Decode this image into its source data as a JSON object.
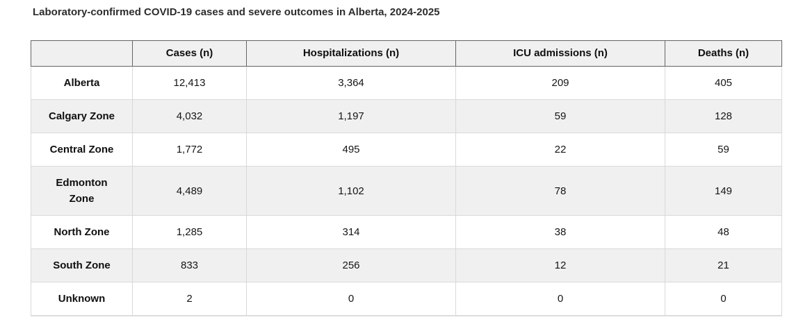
{
  "title": "Laboratory-confirmed COVID-19 cases and severe outcomes in Alberta, 2024-2025",
  "table": {
    "columns": [
      "",
      "Cases (n)",
      "Hospitalizations (n)",
      "ICU admissions (n)",
      "Deaths (n)"
    ],
    "rows": [
      {
        "label": "Alberta",
        "values": [
          "12,413",
          "3,364",
          "209",
          "405"
        ]
      },
      {
        "label": "Calgary Zone",
        "values": [
          "4,032",
          "1,197",
          "59",
          "128"
        ]
      },
      {
        "label": "Central Zone",
        "values": [
          "1,772",
          "495",
          "22",
          "59"
        ]
      },
      {
        "label": "Edmonton\nZone",
        "values": [
          "4,489",
          "1,102",
          "78",
          "149"
        ]
      },
      {
        "label": "North Zone",
        "values": [
          "1,285",
          "314",
          "38",
          "48"
        ]
      },
      {
        "label": "South Zone",
        "values": [
          "833",
          "256",
          "12",
          "21"
        ]
      },
      {
        "label": "Unknown",
        "values": [
          "2",
          "0",
          "0",
          "0"
        ]
      }
    ]
  },
  "colors": {
    "header_background": "#f0f0f0",
    "stripe_background": "#f0f0f0",
    "header_border": "#646464",
    "cell_border": "#d9d9d9",
    "title_text": "#2d2d2d",
    "cell_text": "#151515"
  },
  "chart_data": {
    "type": "table",
    "title": "Laboratory-confirmed COVID-19 cases and severe outcomes in Alberta, 2024-2025",
    "columns": [
      "Cases (n)",
      "Hospitalizations (n)",
      "ICU admissions (n)",
      "Deaths (n)"
    ],
    "row_labels": [
      "Alberta",
      "Calgary Zone",
      "Central Zone",
      "Edmonton Zone",
      "North Zone",
      "South Zone",
      "Unknown"
    ],
    "values": [
      [
        12413,
        3364,
        209,
        405
      ],
      [
        4032,
        1197,
        59,
        128
      ],
      [
        1772,
        495,
        22,
        59
      ],
      [
        4489,
        1102,
        78,
        149
      ],
      [
        1285,
        314,
        38,
        48
      ],
      [
        833,
        256,
        12,
        21
      ],
      [
        2,
        0,
        0,
        0
      ]
    ]
  }
}
